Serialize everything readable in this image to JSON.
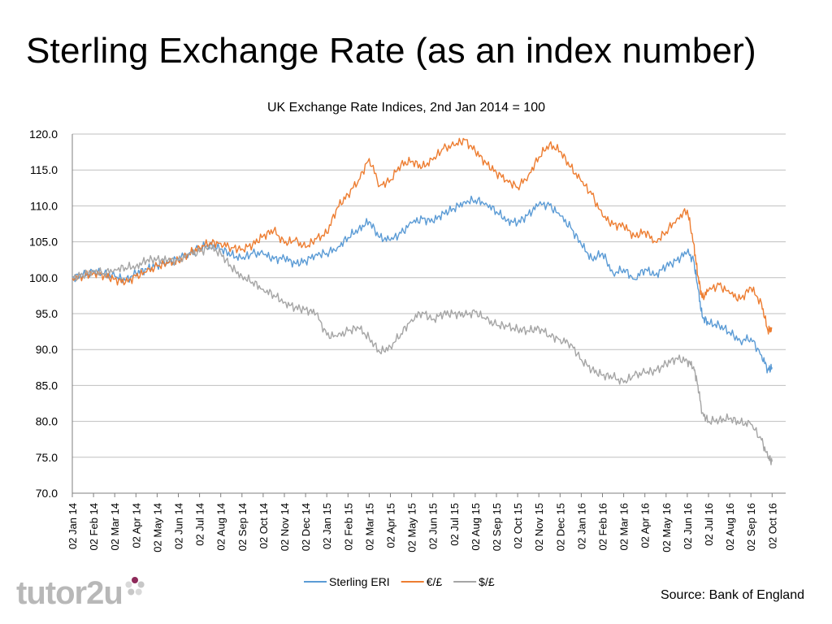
{
  "page": {
    "title": "Sterling Exchange Rate (as an index number)",
    "source": "Source: Bank of England",
    "logo_text": "tutor2u"
  },
  "chart_data": {
    "type": "line",
    "title": "UK Exchange Rate Indices, 2nd Jan 2014 = 100",
    "xlabel": "",
    "ylabel": "",
    "ylim": [
      70,
      120
    ],
    "yticks": [
      70,
      75,
      80,
      85,
      90,
      95,
      100,
      105,
      110,
      115,
      120
    ],
    "ytick_labels": [
      "70.0",
      "75.0",
      "80.0",
      "85.0",
      "90.0",
      "95.0",
      "100.0",
      "105.0",
      "110.0",
      "115.0",
      "120.0"
    ],
    "grid": true,
    "legend_position": "bottom",
    "x_start": "02 Jan 14",
    "x_end_month_index": 33.0,
    "x_tick_labels": [
      "02 Jan 14",
      "02 Feb 14",
      "02 Mar 14",
      "02 Apr 14",
      "02 May 14",
      "02 Jun 14",
      "02 Jul 14",
      "02 Aug 14",
      "02 Sep 14",
      "02 Oct 14",
      "02 Nov 14",
      "02 Dec 14",
      "02 Jan 15",
      "02 Feb 15",
      "02 Mar 15",
      "02 Apr 15",
      "02 May 15",
      "02 Jun 15",
      "02 Jul 15",
      "02 Aug 15",
      "02 Sep 15",
      "02 Oct 15",
      "02 Nov 15",
      "02 Dec 15",
      "02 Jan 16",
      "02 Feb 16",
      "02 Mar 16",
      "02 Apr 16",
      "02 May 16",
      "02 Jun 16",
      "02 Jul 16",
      "02 Aug 16",
      "02 Sep 16",
      "02 Oct 16"
    ],
    "series": [
      {
        "name": "Sterling ERI",
        "color": "#5b9bd5",
        "points": [
          [
            0,
            100
          ],
          [
            0.5,
            100.3
          ],
          [
            1,
            100.8
          ],
          [
            1.5,
            100.5
          ],
          [
            2,
            100.2
          ],
          [
            2.5,
            99.6
          ],
          [
            3,
            100.6
          ],
          [
            3.5,
            101.2
          ],
          [
            4,
            101.8
          ],
          [
            4.5,
            102.2
          ],
          [
            5,
            102.7
          ],
          [
            5.5,
            103.4
          ],
          [
            6,
            104.2
          ],
          [
            6.5,
            104.6
          ],
          [
            7,
            104.0
          ],
          [
            7.5,
            103.2
          ],
          [
            8,
            102.6
          ],
          [
            8.5,
            103.4
          ],
          [
            9,
            103.3
          ],
          [
            9.5,
            102.6
          ],
          [
            10,
            102.7
          ],
          [
            10.5,
            102.0
          ],
          [
            11,
            102.3
          ],
          [
            11.5,
            103.3
          ],
          [
            12,
            103.4
          ],
          [
            12.5,
            104.2
          ],
          [
            13,
            105.6
          ],
          [
            13.5,
            106.8
          ],
          [
            14,
            107.8
          ],
          [
            14.5,
            105.6
          ],
          [
            15,
            105.2
          ],
          [
            15.5,
            106.2
          ],
          [
            16,
            107.6
          ],
          [
            16.5,
            108.2
          ],
          [
            17,
            107.8
          ],
          [
            17.5,
            109.0
          ],
          [
            18,
            109.6
          ],
          [
            18.5,
            110.6
          ],
          [
            19,
            110.8
          ],
          [
            19.5,
            110.4
          ],
          [
            20,
            109.2
          ],
          [
            20.5,
            108.0
          ],
          [
            21,
            107.6
          ],
          [
            21.5,
            108.8
          ],
          [
            22,
            110.2
          ],
          [
            22.5,
            110.1
          ],
          [
            23,
            108.6
          ],
          [
            23.5,
            107.0
          ],
          [
            24,
            104.6
          ],
          [
            24.5,
            102.6
          ],
          [
            25,
            103.4
          ],
          [
            25.5,
            100.6
          ],
          [
            26,
            101.2
          ],
          [
            26.5,
            99.8
          ],
          [
            27,
            101.2
          ],
          [
            27.5,
            100.4
          ],
          [
            28,
            101.6
          ],
          [
            28.5,
            102.4
          ],
          [
            29,
            103.6
          ],
          [
            29.3,
            102.4
          ],
          [
            29.5,
            98.5
          ],
          [
            29.7,
            94.6
          ],
          [
            30,
            93.6
          ],
          [
            30.5,
            93.4
          ],
          [
            31,
            92.4
          ],
          [
            31.5,
            91.2
          ],
          [
            32,
            91.6
          ],
          [
            32.5,
            89.2
          ],
          [
            32.8,
            87.2
          ],
          [
            33,
            87.5
          ]
        ]
      },
      {
        "name": "€/£",
        "color": "#ed7d31",
        "points": [
          [
            0,
            100
          ],
          [
            0.5,
            100.2
          ],
          [
            1,
            100.7
          ],
          [
            1.5,
            100.3
          ],
          [
            2,
            99.8
          ],
          [
            2.5,
            99.3
          ],
          [
            3,
            100.2
          ],
          [
            3.5,
            100.8
          ],
          [
            4,
            101.6
          ],
          [
            4.5,
            102.0
          ],
          [
            5,
            102.3
          ],
          [
            5.5,
            103.3
          ],
          [
            6,
            104.2
          ],
          [
            6.5,
            104.9
          ],
          [
            7,
            104.8
          ],
          [
            7.5,
            104.2
          ],
          [
            8,
            104.0
          ],
          [
            8.5,
            104.6
          ],
          [
            9,
            105.8
          ],
          [
            9.5,
            106.6
          ],
          [
            10,
            104.8
          ],
          [
            10.5,
            105.2
          ],
          [
            11,
            104.2
          ],
          [
            11.5,
            105.4
          ],
          [
            12,
            106.2
          ],
          [
            12.5,
            109.8
          ],
          [
            13,
            111.6
          ],
          [
            13.5,
            113.6
          ],
          [
            14,
            116.6
          ],
          [
            14.5,
            112.8
          ],
          [
            15,
            113.6
          ],
          [
            15.5,
            115.8
          ],
          [
            16,
            116.2
          ],
          [
            16.5,
            115.4
          ],
          [
            17,
            116.4
          ],
          [
            17.5,
            118.0
          ],
          [
            18,
            118.4
          ],
          [
            18.5,
            119.2
          ],
          [
            19,
            117.6
          ],
          [
            19.5,
            116.0
          ],
          [
            20,
            114.6
          ],
          [
            20.5,
            113.6
          ],
          [
            21,
            112.6
          ],
          [
            21.5,
            114.2
          ],
          [
            22,
            116.8
          ],
          [
            22.5,
            118.6
          ],
          [
            23,
            117.6
          ],
          [
            23.5,
            115.4
          ],
          [
            24,
            113.4
          ],
          [
            24.5,
            111.6
          ],
          [
            25,
            108.6
          ],
          [
            25.5,
            107.4
          ],
          [
            26,
            107.2
          ],
          [
            26.5,
            105.8
          ],
          [
            27,
            106.4
          ],
          [
            27.5,
            105.0
          ],
          [
            28,
            106.4
          ],
          [
            28.5,
            108.2
          ],
          [
            29,
            109.4
          ],
          [
            29.3,
            104.8
          ],
          [
            29.5,
            100.2
          ],
          [
            29.7,
            97.2
          ],
          [
            30,
            98.2
          ],
          [
            30.5,
            99.0
          ],
          [
            31,
            97.8
          ],
          [
            31.5,
            97.0
          ],
          [
            32,
            98.6
          ],
          [
            32.5,
            96.4
          ],
          [
            32.8,
            92.6
          ],
          [
            33,
            93.0
          ]
        ]
      },
      {
        "name": "$/£",
        "color": "#a5a5a5",
        "points": [
          [
            0,
            100
          ],
          [
            0.5,
            100.4
          ],
          [
            1,
            101.0
          ],
          [
            1.5,
            100.6
          ],
          [
            2,
            101.2
          ],
          [
            2.5,
            101.4
          ],
          [
            3,
            101.6
          ],
          [
            3.5,
            102.4
          ],
          [
            4,
            102.6
          ],
          [
            4.5,
            102.4
          ],
          [
            5,
            102.4
          ],
          [
            5.5,
            103.2
          ],
          [
            6,
            103.6
          ],
          [
            6.5,
            104.2
          ],
          [
            7,
            103.4
          ],
          [
            7.5,
            101.4
          ],
          [
            8,
            100.2
          ],
          [
            8.5,
            99.4
          ],
          [
            9,
            98.4
          ],
          [
            9.5,
            97.6
          ],
          [
            10,
            96.6
          ],
          [
            10.5,
            95.8
          ],
          [
            11,
            95.6
          ],
          [
            11.5,
            95.0
          ],
          [
            12,
            92.0
          ],
          [
            12.5,
            91.8
          ],
          [
            13,
            92.6
          ],
          [
            13.5,
            93.0
          ],
          [
            14,
            91.6
          ],
          [
            14.5,
            89.6
          ],
          [
            15,
            90.4
          ],
          [
            15.5,
            92.2
          ],
          [
            16,
            94.2
          ],
          [
            16.5,
            95.2
          ],
          [
            17,
            94.2
          ],
          [
            17.5,
            95.0
          ],
          [
            18,
            95.0
          ],
          [
            18.5,
            94.8
          ],
          [
            19,
            95.2
          ],
          [
            19.5,
            94.2
          ],
          [
            20,
            93.4
          ],
          [
            20.5,
            93.2
          ],
          [
            21,
            92.8
          ],
          [
            21.5,
            92.6
          ],
          [
            22,
            93.0
          ],
          [
            22.5,
            92.0
          ],
          [
            23,
            91.4
          ],
          [
            23.5,
            90.8
          ],
          [
            24,
            88.6
          ],
          [
            24.5,
            87.2
          ],
          [
            25,
            86.4
          ],
          [
            25.5,
            86.2
          ],
          [
            26,
            85.4
          ],
          [
            26.5,
            86.4
          ],
          [
            27,
            86.8
          ],
          [
            27.5,
            87.0
          ],
          [
            28,
            88.0
          ],
          [
            28.5,
            88.8
          ],
          [
            29,
            88.4
          ],
          [
            29.3,
            87.6
          ],
          [
            29.5,
            85.0
          ],
          [
            29.7,
            81.2
          ],
          [
            30,
            80.0
          ],
          [
            30.5,
            80.2
          ],
          [
            31,
            80.4
          ],
          [
            31.5,
            79.8
          ],
          [
            32,
            79.6
          ],
          [
            32.5,
            77.4
          ],
          [
            32.8,
            75.0
          ],
          [
            33,
            74.4
          ]
        ]
      }
    ]
  }
}
